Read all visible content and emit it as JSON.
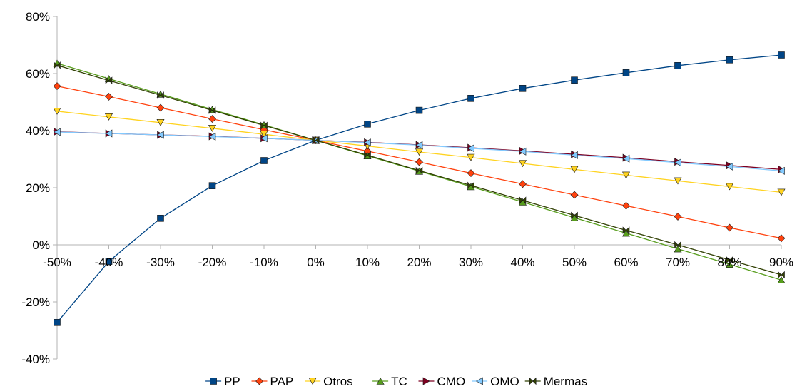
{
  "chart_data": {
    "type": "line",
    "title": "",
    "xlabel": "",
    "ylabel": "",
    "categories": [
      "-50%",
      "-40%",
      "-30%",
      "-20%",
      "-10%",
      "0%",
      "10%",
      "20%",
      "30%",
      "40%",
      "50%",
      "60%",
      "70%",
      "80%",
      "90%"
    ],
    "x": [
      -50,
      -40,
      -30,
      -20,
      -10,
      0,
      10,
      20,
      30,
      40,
      50,
      60,
      70,
      80,
      90
    ],
    "ylim": [
      -40,
      80
    ],
    "yticks": [
      -40,
      -20,
      0,
      20,
      40,
      60,
      80
    ],
    "ytick_labels": [
      "-40%",
      "-20%",
      "0%",
      "20%",
      "40%",
      "60%",
      "80%"
    ],
    "grid": false,
    "legend_position": "bottom",
    "series": [
      {
        "name": "PP",
        "color": "#004586",
        "marker": "square",
        "values": [
          -27.2,
          -5.8,
          9.3,
          20.7,
          29.5,
          36.6,
          42.3,
          47.1,
          51.3,
          54.8,
          57.7,
          60.3,
          62.8,
          64.8,
          66.5
        ]
      },
      {
        "name": "PAP",
        "color": "#ff420e",
        "marker": "diamond",
        "values": [
          55.6,
          51.9,
          48.0,
          44.1,
          40.3,
          36.6,
          32.8,
          29.0,
          25.1,
          21.3,
          17.5,
          13.7,
          9.9,
          6.0,
          2.3
        ]
      },
      {
        "name": "Otros",
        "color": "#ffd320",
        "marker": "triangle-down",
        "values": [
          46.8,
          44.8,
          42.8,
          40.8,
          38.7,
          36.6,
          34.6,
          32.5,
          30.6,
          28.5,
          26.4,
          24.4,
          22.4,
          20.4,
          18.4
        ]
      },
      {
        "name": "TC",
        "color": "#579d1c",
        "marker": "triangle-up",
        "values": [
          63.6,
          58.2,
          52.8,
          47.4,
          42.0,
          36.6,
          31.2,
          25.8,
          20.4,
          15.0,
          9.5,
          4.1,
          -1.4,
          -6.8,
          -12.3
        ]
      },
      {
        "name": "CMO",
        "color": "#7e0021",
        "marker": "triangle-right",
        "values": [
          39.6,
          39.0,
          38.5,
          38.0,
          37.3,
          36.6,
          35.9,
          35.0,
          34.0,
          32.9,
          31.7,
          30.5,
          29.1,
          27.8,
          26.4
        ]
      },
      {
        "name": "OMO",
        "color": "#83caff",
        "marker": "triangle-left",
        "values": [
          39.5,
          39.0,
          38.5,
          37.9,
          37.3,
          36.6,
          35.8,
          34.9,
          33.8,
          32.7,
          31.4,
          30.2,
          28.8,
          27.4,
          25.9
        ]
      },
      {
        "name": "Mermas",
        "color": "#314004",
        "marker": "bowtie",
        "values": [
          62.9,
          57.6,
          52.4,
          47.1,
          41.8,
          36.6,
          31.4,
          26.0,
          20.8,
          15.6,
          10.3,
          5.1,
          0.0,
          -5.3,
          -10.5
        ]
      }
    ]
  }
}
